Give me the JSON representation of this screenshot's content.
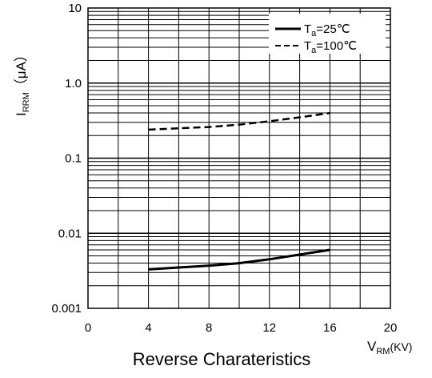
{
  "chart_data": {
    "type": "line",
    "caption": "Reverse Charateristics",
    "y_scale": "log",
    "grid": true,
    "legend_position": "top-right",
    "xlim": [
      0,
      20
    ],
    "ylim": [
      0.001,
      10
    ],
    "x_ticks": [
      {
        "value": 0,
        "label": "0"
      },
      {
        "value": 4,
        "label": "4"
      },
      {
        "value": 8,
        "label": "8"
      },
      {
        "value": 12,
        "label": "12"
      },
      {
        "value": 16,
        "label": "16"
      },
      {
        "value": 20,
        "label": "20"
      }
    ],
    "y_ticks": [
      {
        "value": 10,
        "label": "10"
      },
      {
        "value": 1,
        "label": "1.0"
      },
      {
        "value": 0.1,
        "label": "0.1"
      },
      {
        "value": 0.01,
        "label": "0.01"
      },
      {
        "value": 0.001,
        "label": "0.001"
      }
    ],
    "xlabel": {
      "main": "V",
      "sub": "RM",
      "unit": "(KV)"
    },
    "ylabel": {
      "main": "I",
      "sub": "RRM",
      "unit": "（μA）"
    },
    "series": [
      {
        "legend_main": "T",
        "legend_sub": "a",
        "legend_value": "=25℃",
        "style": "solid",
        "x": [
          4,
          6,
          8,
          10,
          12,
          14,
          16
        ],
        "y": [
          0.0033,
          0.0035,
          0.0037,
          0.004,
          0.0045,
          0.0052,
          0.006
        ]
      },
      {
        "legend_main": "T",
        "legend_sub": "a",
        "legend_value": "=100℃",
        "style": "dashed",
        "x": [
          4,
          6,
          8,
          10,
          12,
          14,
          16
        ],
        "y": [
          0.24,
          0.25,
          0.26,
          0.28,
          0.31,
          0.35,
          0.4
        ]
      }
    ]
  }
}
